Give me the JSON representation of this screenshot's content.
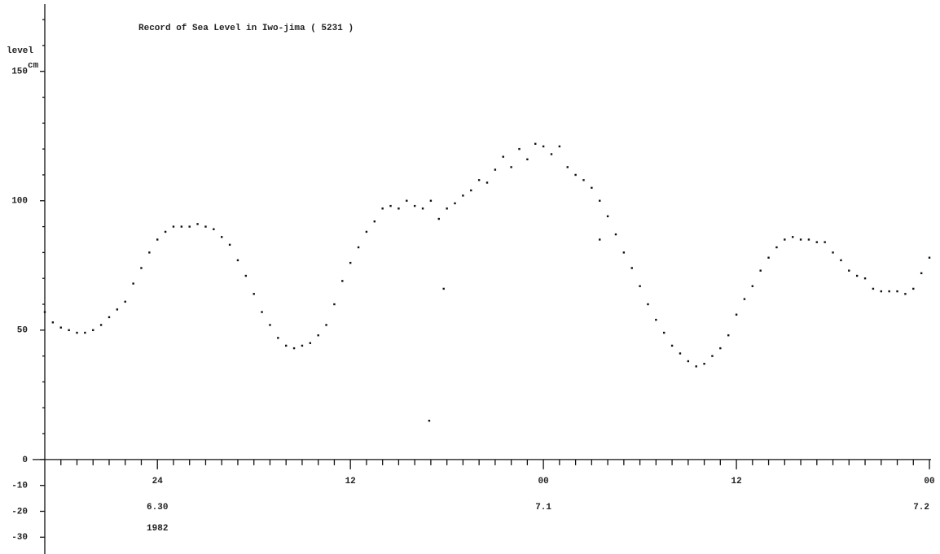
{
  "chart_data": {
    "type": "scatter",
    "title": "Record of Sea Level in Iwo-jima ( 5231 )",
    "y_label": "level",
    "y_unit": "cm",
    "color": "#111111",
    "xlim": [
      -7,
      48.1
    ],
    "ylim": [
      -36.5,
      176
    ],
    "xticks": [
      {
        "value": 0,
        "label": "24"
      },
      {
        "value": 12,
        "label": "12"
      },
      {
        "value": 24,
        "label": "00"
      },
      {
        "value": 36,
        "label": "12"
      },
      {
        "value": 48,
        "label": "00"
      }
    ],
    "xminorticks": [
      -6,
      -5,
      -4,
      -3,
      -2,
      -1,
      1,
      2,
      3,
      4,
      5,
      6,
      7,
      8,
      9,
      10,
      11,
      13,
      14,
      15,
      16,
      17,
      18,
      19,
      20,
      21,
      22,
      23,
      25,
      26,
      27,
      28,
      29,
      30,
      31,
      32,
      33,
      34,
      35,
      37,
      38,
      39,
      40,
      41,
      42,
      43,
      44,
      45,
      46,
      47
    ],
    "date_labels": [
      {
        "x": 0,
        "label": "6.30"
      },
      {
        "x": 24,
        "label": "7.1"
      },
      {
        "x": 48,
        "label": "7.2"
      }
    ],
    "year_label": {
      "x": 0,
      "label": "1982"
    },
    "yticks": [
      -30,
      -20,
      -10,
      0,
      50,
      100,
      150
    ],
    "yminorticks": [
      10,
      20,
      30,
      40,
      60,
      70,
      80,
      90,
      110,
      120,
      130,
      140,
      160,
      170
    ],
    "x": [
      -7,
      -6.5,
      -6,
      -5.5,
      -5,
      -4.5,
      -4,
      -3.5,
      -3,
      -2.5,
      -2,
      -1.5,
      -1,
      -0.5,
      0,
      0.5,
      1,
      1.5,
      2,
      2.5,
      3,
      3.5,
      4,
      4.5,
      5,
      5.5,
      6,
      6.5,
      7,
      7.5,
      8,
      8.5,
      9,
      9.5,
      10,
      10.5,
      11,
      11.5,
      12,
      12.5,
      13,
      13.5,
      14,
      14.5,
      15,
      15.5,
      16,
      16.5,
      17,
      17.5,
      18,
      18.5,
      19,
      19.5,
      20,
      20.5,
      21,
      21.5,
      22,
      22.5,
      23,
      23.5,
      24,
      24.5,
      25,
      25.5,
      26,
      26.5,
      27,
      27.5,
      28,
      28.5,
      29,
      29.5,
      30,
      30.5,
      31,
      31.5,
      32,
      32.5,
      33,
      33.5,
      34,
      34.5,
      35,
      35.5,
      36,
      36.5,
      37,
      37.5,
      38,
      38.5,
      39,
      39.5,
      40,
      40.5,
      41,
      41.5,
      42,
      42.5,
      43,
      43.5,
      44,
      44.5,
      45,
      45.5,
      46,
      46.5,
      47,
      47.5,
      48,
      17.8,
      16.9,
      27.5
    ],
    "values": [
      57,
      53,
      51,
      50,
      49,
      49,
      50,
      52,
      55,
      58,
      61,
      68,
      74,
      80,
      85,
      88,
      90,
      90,
      90,
      91,
      90,
      89,
      86,
      83,
      77,
      71,
      64,
      57,
      52,
      47,
      44,
      43,
      44,
      45,
      48,
      52,
      60,
      69,
      76,
      82,
      88,
      92,
      97,
      98,
      97,
      100,
      98,
      97,
      100,
      93,
      97,
      99,
      102,
      104,
      108,
      107,
      112,
      117,
      113,
      120,
      116,
      122,
      121,
      118,
      121,
      113,
      110,
      108,
      105,
      100,
      94,
      87,
      80,
      74,
      67,
      60,
      54,
      49,
      44,
      41,
      38,
      36,
      37,
      40,
      43,
      48,
      56,
      62,
      67,
      73,
      78,
      82,
      85,
      86,
      85,
      85,
      84,
      84,
      80,
      77,
      73,
      71,
      70,
      66,
      65,
      65,
      65,
      64,
      66,
      72,
      78,
      66,
      15,
      85
    ]
  }
}
